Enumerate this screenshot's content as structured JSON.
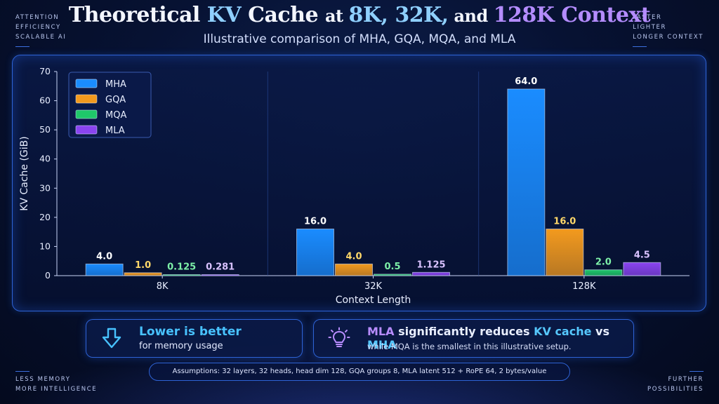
{
  "corners": {
    "top_left": [
      "ATTENTION",
      "EFFICIENCY",
      "SCALABLE AI"
    ],
    "top_right": [
      "FASTER",
      "LIGHTER",
      "LONGER CONTEXT"
    ],
    "bottom_left": [
      "LESS MEMORY",
      "MORE INTELLIGENCE"
    ],
    "bottom_right": [
      "FURTHER",
      "POSSIBILITIES"
    ]
  },
  "header": {
    "title_parts": [
      "Theoretical ",
      "KV",
      " Cache ",
      "at ",
      "8K, 32K,",
      " and ",
      "128K",
      " Context"
    ],
    "subtitle": "Illustrative comparison of MHA, GQA, MQA, and MLA"
  },
  "colors": {
    "MHA": "#1a8cff",
    "GQA": "#f39a1e",
    "MQA": "#1fc86a",
    "MLA": "#8a44f0",
    "label_MHA": "#ffffff",
    "label_GQA": "#ffd86a",
    "label_MQA": "#7df0a8",
    "label_MLA": "#d9c2ff"
  },
  "chart_data": {
    "type": "bar",
    "title": "Theoretical KV Cache at 8K, 32K, and 128K Context",
    "xlabel": "Context Length",
    "ylabel": "KV Cache (GiB)",
    "ylim": [
      0,
      70
    ],
    "yticks": [
      0,
      10,
      20,
      30,
      40,
      50,
      60,
      70
    ],
    "categories": [
      "8K",
      "32K",
      "128K"
    ],
    "legend_position": "top-left",
    "grid": "x",
    "series": [
      {
        "name": "MHA",
        "values": [
          4.0,
          16.0,
          64.0
        ],
        "labels": [
          "4.0",
          "16.0",
          "64.0"
        ]
      },
      {
        "name": "GQA",
        "values": [
          1.0,
          4.0,
          16.0
        ],
        "labels": [
          "1.0",
          "4.0",
          "16.0"
        ]
      },
      {
        "name": "MQA",
        "values": [
          0.125,
          0.5,
          2.0
        ],
        "labels": [
          "0.125",
          "0.5",
          "2.0"
        ]
      },
      {
        "name": "MLA",
        "values": [
          0.281,
          1.125,
          4.5
        ],
        "labels": [
          "0.281",
          "1.125",
          "4.5"
        ]
      }
    ]
  },
  "cards": {
    "lower": {
      "icon": "down-arrow-icon",
      "heading": "Lower is better",
      "sub": "for memory usage"
    },
    "mla": {
      "icon": "lightbulb-icon",
      "heading_parts": [
        "MLA",
        " significantly reduces ",
        "KV cache",
        " vs ",
        "MHA"
      ],
      "sub": "while MQA is the smallest in this illustrative setup."
    }
  },
  "assumptions": "Assumptions: 32 layers, 32 heads, head dim 128, GQA groups 8, MLA latent 512 + RoPE 64, 2 bytes/value"
}
